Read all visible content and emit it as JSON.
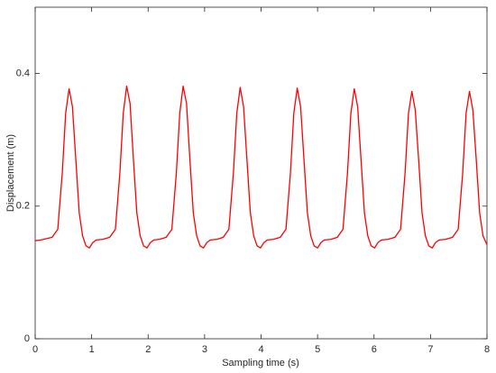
{
  "chart_data": {
    "type": "line",
    "xlabel": "Sampling time (s)",
    "ylabel": "Displacement (m)",
    "color": "#ff0000",
    "grid": false,
    "xlim": [
      0,
      8
    ],
    "ylim": [
      0,
      0.5
    ],
    "xticks": [
      0,
      1,
      2,
      3,
      4,
      5,
      6,
      7,
      8
    ],
    "yticks": [
      0,
      0.2,
      0.4
    ],
    "x": [
      0,
      0.1,
      0.3,
      0.4,
      0.48,
      0.54,
      0.6,
      0.66,
      0.72,
      0.78,
      0.84,
      0.9,
      0.96,
      1.02,
      1.08,
      1.2,
      1.32,
      1.42,
      1.5,
      1.56,
      1.62,
      1.68,
      1.74,
      1.8,
      1.86,
      1.92,
      1.98,
      2.04,
      2.1,
      2.2,
      2.32,
      2.42,
      2.5,
      2.56,
      2.62,
      2.68,
      2.74,
      2.8,
      2.86,
      2.92,
      2.98,
      3.04,
      3.1,
      3.22,
      3.33,
      3.43,
      3.51,
      3.57,
      3.63,
      3.69,
      3.75,
      3.81,
      3.87,
      3.93,
      3.99,
      4.05,
      4.11,
      4.22,
      4.34,
      4.44,
      4.52,
      4.58,
      4.64,
      4.7,
      4.76,
      4.82,
      4.88,
      4.94,
      5.0,
      5.06,
      5.12,
      5.24,
      5.35,
      5.45,
      5.53,
      5.59,
      5.65,
      5.71,
      5.77,
      5.83,
      5.89,
      5.95,
      6.01,
      6.07,
      6.13,
      6.25,
      6.37,
      6.47,
      6.55,
      6.61,
      6.67,
      6.73,
      6.79,
      6.85,
      6.91,
      6.97,
      7.03,
      7.09,
      7.15,
      7.27,
      7.39,
      7.49,
      7.57,
      7.63,
      7.69,
      7.75,
      7.81,
      7.87,
      7.93,
      8.0
    ],
    "values": [
      0.148,
      0.149,
      0.153,
      0.165,
      0.25,
      0.34,
      0.377,
      0.35,
      0.27,
      0.19,
      0.155,
      0.14,
      0.137,
      0.145,
      0.149,
      0.15,
      0.153,
      0.165,
      0.25,
      0.34,
      0.381,
      0.355,
      0.27,
      0.19,
      0.155,
      0.14,
      0.137,
      0.145,
      0.149,
      0.15,
      0.153,
      0.165,
      0.25,
      0.34,
      0.381,
      0.355,
      0.27,
      0.19,
      0.155,
      0.14,
      0.137,
      0.145,
      0.149,
      0.15,
      0.153,
      0.165,
      0.25,
      0.34,
      0.379,
      0.35,
      0.27,
      0.19,
      0.155,
      0.14,
      0.137,
      0.145,
      0.149,
      0.15,
      0.153,
      0.165,
      0.25,
      0.34,
      0.378,
      0.35,
      0.27,
      0.19,
      0.155,
      0.14,
      0.137,
      0.145,
      0.149,
      0.15,
      0.153,
      0.165,
      0.25,
      0.34,
      0.377,
      0.35,
      0.27,
      0.19,
      0.155,
      0.14,
      0.137,
      0.145,
      0.149,
      0.15,
      0.153,
      0.165,
      0.25,
      0.34,
      0.373,
      0.345,
      0.27,
      0.19,
      0.155,
      0.14,
      0.137,
      0.145,
      0.149,
      0.15,
      0.153,
      0.165,
      0.25,
      0.34,
      0.373,
      0.345,
      0.27,
      0.19,
      0.155,
      0.142
    ]
  }
}
